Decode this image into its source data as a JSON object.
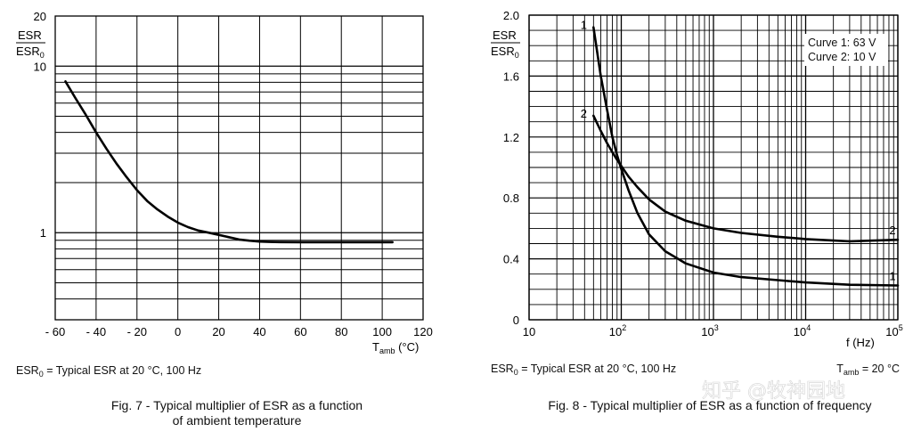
{
  "chart_data": [
    {
      "type": "line",
      "title": "",
      "caption_line1": "Fig. 7 - Typical multiplier of ESR as a function",
      "caption_line2": "of ambient temperature",
      "ylabel_num": "ESR",
      "ylabel_den": "ESR",
      "ylabel_den_sub": "0",
      "xlabel_main": "T",
      "xlabel_sub": "amb",
      "xlabel_unit": " (°C)",
      "yscale": "log",
      "ylim": [
        0.3,
        20
      ],
      "xlim": [
        -60,
        120
      ],
      "xticks": [
        "- 60",
        "- 40",
        "- 20",
        "0",
        "20",
        "40",
        "60",
        "80",
        "100",
        "120"
      ],
      "yticks": [
        "20",
        "10",
        "1"
      ],
      "grid": true,
      "note_main": "ESR",
      "note_sub": "0",
      "note_rest": " = Typical ESR at 20 °C, 100 Hz",
      "series": [
        {
          "x": [
            -55,
            -50,
            -45,
            -40,
            -35,
            -30,
            -25,
            -20,
            -15,
            -10,
            -5,
            0,
            5,
            10,
            15,
            20,
            25,
            30,
            35,
            40,
            45,
            50,
            60,
            70,
            80,
            90,
            100,
            105
          ],
          "y": [
            8.1,
            6.4,
            5.1,
            4.0,
            3.2,
            2.6,
            2.15,
            1.8,
            1.55,
            1.38,
            1.25,
            1.15,
            1.08,
            1.03,
            1.0,
            0.97,
            0.94,
            0.91,
            0.895,
            0.885,
            0.88,
            0.878,
            0.877,
            0.877,
            0.877,
            0.877,
            0.877,
            0.877
          ]
        }
      ]
    },
    {
      "type": "line",
      "title": "",
      "caption": "Fig. 8 - Typical multiplier of ESR as a function of frequency",
      "ylabel_num": "ESR",
      "ylabel_den": "ESR",
      "ylabel_den_sub": "0",
      "xlabel": "f (Hz)",
      "xscale": "log",
      "ylim": [
        0,
        2.0
      ],
      "xlim": [
        10,
        100000
      ],
      "yticks": [
        "0",
        "0.4",
        "0.8",
        "1.2",
        "1.6",
        "2.0"
      ],
      "xtick_base": "10",
      "xtick_first": "10",
      "xtick_exponents": [
        "2",
        "3",
        "4",
        "5"
      ],
      "grid": true,
      "legend_position": "top-right",
      "legend": [
        "Curve 1: 63 V",
        "Curve 2: 10 V"
      ],
      "note_main": "ESR",
      "note_sub": "0",
      "note_rest": " = Typical ESR at 20 °C, 100 Hz",
      "cond_main": "T",
      "cond_sub": "amb",
      "cond_rest": " = 20 °C",
      "series": [
        {
          "label": "1",
          "x": [
            50,
            60,
            70,
            80,
            90,
            100,
            120,
            150,
            200,
            300,
            500,
            1000,
            2000,
            5000,
            10000,
            30000,
            100000
          ],
          "y": [
            1.92,
            1.6,
            1.38,
            1.2,
            1.08,
            0.99,
            0.85,
            0.7,
            0.56,
            0.45,
            0.37,
            0.31,
            0.28,
            0.26,
            0.245,
            0.23,
            0.225
          ]
        },
        {
          "label": "2",
          "x": [
            50,
            60,
            70,
            80,
            90,
            100,
            120,
            150,
            200,
            300,
            500,
            1000,
            2000,
            5000,
            10000,
            30000,
            100000
          ],
          "y": [
            1.34,
            1.24,
            1.16,
            1.1,
            1.05,
            1.01,
            0.94,
            0.87,
            0.79,
            0.71,
            0.65,
            0.6,
            0.57,
            0.545,
            0.53,
            0.515,
            0.525
          ]
        }
      ]
    }
  ],
  "watermark": "知乎 @牧神园地"
}
